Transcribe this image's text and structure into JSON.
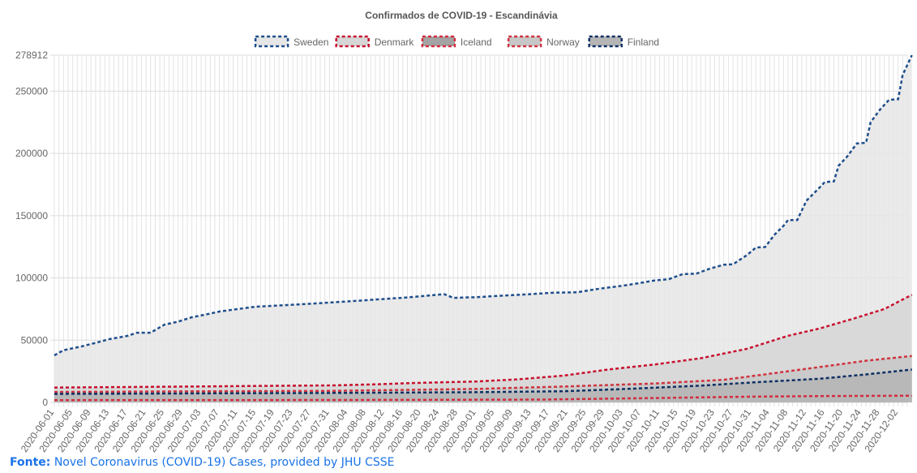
{
  "chart_data": {
    "type": "area",
    "title": "Confirmados de COVID-19 - Escandinávia",
    "xlabel": "",
    "ylabel": "",
    "ylim": [
      0,
      278912
    ],
    "yticks": [
      0,
      50000,
      100000,
      150000,
      200000,
      250000,
      278912
    ],
    "x_start": "2020-06-01",
    "x_end": "2020-12-04",
    "x_tick_labels": [
      "2020-06-01",
      "2020-06-05",
      "2020-06-09",
      "2020-06-13",
      "2020-06-17",
      "2020-06-21",
      "2020-06-25",
      "2020-06-29",
      "2020-07-03",
      "2020-07-07",
      "2020-07-11",
      "2020-07-15",
      "2020-07-19",
      "2020-07-23",
      "2020-07-27",
      "2020-07-31",
      "2020-08-04",
      "2020-08-08",
      "2020-08-12",
      "2020-08-16",
      "2020-08-20",
      "2020-08-24",
      "2020-08-28",
      "2020-09-01",
      "2020-09-05",
      "2020-09-09",
      "2020-09-13",
      "2020-09-17",
      "2020-09-21",
      "2020-09-25",
      "2020-09-29",
      "2020-10-03",
      "2020-10-07",
      "2020-10-11",
      "2020-10-15",
      "2020-10-19",
      "2020-10-23",
      "2020-10-27",
      "2020-10-31",
      "2020-11-04",
      "2020-11-08",
      "2020-11-12",
      "2020-11-16",
      "2020-11-20",
      "2020-11-24",
      "2020-11-28",
      "2020-12-02"
    ],
    "grid": true,
    "legend_position": "top",
    "series": [
      {
        "name": "Sweden",
        "color": "#1f4e8c",
        "fill": "#e6e6e6",
        "points": [
          [
            "2020-06-01",
            37800
          ],
          [
            "2020-06-03",
            41900
          ],
          [
            "2020-06-07",
            45000
          ],
          [
            "2020-06-10",
            47800
          ],
          [
            "2020-06-13",
            50800
          ],
          [
            "2020-06-17",
            53500
          ],
          [
            "2020-06-19",
            56000
          ],
          [
            "2020-06-22",
            56000
          ],
          [
            "2020-06-25",
            62400
          ],
          [
            "2020-06-28",
            64900
          ],
          [
            "2020-07-01",
            68400
          ],
          [
            "2020-07-04",
            70600
          ],
          [
            "2020-07-07",
            73000
          ],
          [
            "2020-07-11",
            75000
          ],
          [
            "2020-07-15",
            76900
          ],
          [
            "2020-07-21",
            78100
          ],
          [
            "2020-07-28",
            79500
          ],
          [
            "2020-08-04",
            81100
          ],
          [
            "2020-08-10",
            82600
          ],
          [
            "2020-08-17",
            84300
          ],
          [
            "2020-08-21",
            85600
          ],
          [
            "2020-08-25",
            86900
          ],
          [
            "2020-08-27",
            84000
          ],
          [
            "2020-09-01",
            84500
          ],
          [
            "2020-09-06",
            85600
          ],
          [
            "2020-09-13",
            87000
          ],
          [
            "2020-09-18",
            88200
          ],
          [
            "2020-09-23",
            88400
          ],
          [
            "2020-09-27",
            90900
          ],
          [
            "2020-10-01",
            92800
          ],
          [
            "2020-10-04",
            94300
          ],
          [
            "2020-10-07",
            96100
          ],
          [
            "2020-10-10",
            98000
          ],
          [
            "2020-10-13",
            99000
          ],
          [
            "2020-10-16",
            103000
          ],
          [
            "2020-10-19",
            103400
          ],
          [
            "2020-10-22",
            107500
          ],
          [
            "2020-10-25",
            110600
          ],
          [
            "2020-10-27",
            111000
          ],
          [
            "2020-10-30",
            118200
          ],
          [
            "2020-11-01",
            124400
          ],
          [
            "2020-11-03",
            124800
          ],
          [
            "2020-11-05",
            134500
          ],
          [
            "2020-11-07",
            141800
          ],
          [
            "2020-11-08",
            146500
          ],
          [
            "2020-11-10",
            146500
          ],
          [
            "2020-11-12",
            162000
          ],
          [
            "2020-11-15",
            173000
          ],
          [
            "2020-11-16",
            177000
          ],
          [
            "2020-11-18",
            177500
          ],
          [
            "2020-11-19",
            190000
          ],
          [
            "2020-11-21",
            198000
          ],
          [
            "2020-11-23",
            208000
          ],
          [
            "2020-11-25",
            208500
          ],
          [
            "2020-11-26",
            225000
          ],
          [
            "2020-11-28",
            235000
          ],
          [
            "2020-11-30",
            243000
          ],
          [
            "2020-12-02",
            243500
          ],
          [
            "2020-12-03",
            263000
          ],
          [
            "2020-12-05",
            278912
          ]
        ]
      },
      {
        "name": "Denmark",
        "color": "#c8102e",
        "fill": "#d6d6d6",
        "points": [
          [
            "2020-06-01",
            11900
          ],
          [
            "2020-06-15",
            12300
          ],
          [
            "2020-07-01",
            12800
          ],
          [
            "2020-07-15",
            13200
          ],
          [
            "2020-08-01",
            13700
          ],
          [
            "2020-08-10",
            14500
          ],
          [
            "2020-08-20",
            15800
          ],
          [
            "2020-09-01",
            16800
          ],
          [
            "2020-09-10",
            18500
          ],
          [
            "2020-09-20",
            21500
          ],
          [
            "2020-09-30",
            26500
          ],
          [
            "2020-10-10",
            30500
          ],
          [
            "2020-10-20",
            35500
          ],
          [
            "2020-10-30",
            43000
          ],
          [
            "2020-11-08",
            53500
          ],
          [
            "2020-11-15",
            59500
          ],
          [
            "2020-11-22",
            67000
          ],
          [
            "2020-11-29",
            75000
          ],
          [
            "2020-12-05",
            86500
          ]
        ]
      },
      {
        "name": "Iceland",
        "color": "#d42c3f",
        "fill": "#a3a3a3",
        "points": [
          [
            "2020-06-01",
            1806
          ],
          [
            "2020-07-15",
            1860
          ],
          [
            "2020-08-15",
            2000
          ],
          [
            "2020-09-15",
            2260
          ],
          [
            "2020-10-10",
            3500
          ],
          [
            "2020-10-31",
            4600
          ],
          [
            "2020-11-15",
            5100
          ],
          [
            "2020-12-05",
            5400
          ]
        ]
      },
      {
        "name": "Norway",
        "color": "#d0333f",
        "fill": "#c7c7c7",
        "points": [
          [
            "2020-06-01",
            8400
          ],
          [
            "2020-07-01",
            8900
          ],
          [
            "2020-08-01",
            9300
          ],
          [
            "2020-09-01",
            10800
          ],
          [
            "2020-09-20",
            12800
          ],
          [
            "2020-10-10",
            15200
          ],
          [
            "2020-10-25",
            18200
          ],
          [
            "2020-11-05",
            23500
          ],
          [
            "2020-11-15",
            28500
          ],
          [
            "2020-11-25",
            33500
          ],
          [
            "2020-12-05",
            37300
          ]
        ]
      },
      {
        "name": "Finland",
        "color": "#0d2f63",
        "fill": "#b5b5b5",
        "points": [
          [
            "2020-06-01",
            6850
          ],
          [
            "2020-07-01",
            7250
          ],
          [
            "2020-08-01",
            7600
          ],
          [
            "2020-09-01",
            8200
          ],
          [
            "2020-09-20",
            9000
          ],
          [
            "2020-10-05",
            11000
          ],
          [
            "2020-10-20",
            13500
          ],
          [
            "2020-11-01",
            16200
          ],
          [
            "2020-11-15",
            19000
          ],
          [
            "2020-11-25",
            22500
          ],
          [
            "2020-12-05",
            26400
          ]
        ]
      }
    ]
  },
  "source": {
    "label": "Fonte:",
    "text": "Novel Coronavirus (COVID-19) Cases, provided by JHU CSSE"
  }
}
